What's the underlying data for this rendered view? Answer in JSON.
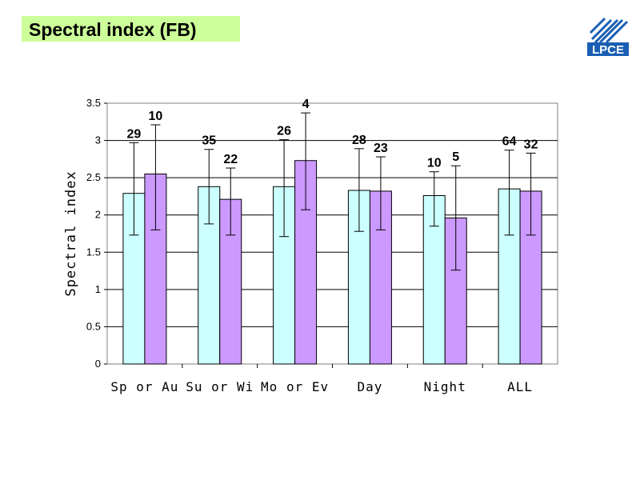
{
  "title": "Spectral index (FB)",
  "logo": {
    "text": "LPCE",
    "color": "#1a5fb4"
  },
  "chart_data": {
    "type": "bar",
    "ylabel": "Spectral index",
    "ylim": [
      0,
      3.5
    ],
    "yticks": [
      0,
      0.5,
      1,
      1.5,
      2,
      2.5,
      3,
      3.5
    ],
    "ytick_labels": [
      "0",
      "0.5",
      "1",
      "1.5",
      "2",
      "2.5",
      "3",
      "3.5"
    ],
    "grid": true,
    "categories": [
      "Sp or Au",
      "Su or Wi",
      "Mo or Ev",
      "Day",
      "Night",
      "ALL"
    ],
    "series": [
      {
        "color": "#ccffff",
        "values": [
          2.29,
          2.38,
          2.38,
          2.33,
          2.26,
          2.35
        ],
        "err_low": [
          1.73,
          1.88,
          1.71,
          1.78,
          1.85,
          1.73
        ],
        "err_high": [
          2.97,
          2.88,
          3.01,
          2.89,
          2.58,
          2.87
        ],
        "labels": [
          "29",
          "35",
          "26",
          "28",
          "10",
          "64"
        ]
      },
      {
        "color": "#cc99ff",
        "values": [
          2.55,
          2.21,
          2.73,
          2.32,
          1.96,
          2.32
        ],
        "err_low": [
          1.8,
          1.73,
          2.07,
          1.8,
          1.26,
          1.73
        ],
        "err_high": [
          3.21,
          2.63,
          3.37,
          2.78,
          2.66,
          2.83
        ],
        "labels": [
          "10",
          "22",
          "4",
          "23",
          "5",
          "32"
        ]
      }
    ]
  }
}
